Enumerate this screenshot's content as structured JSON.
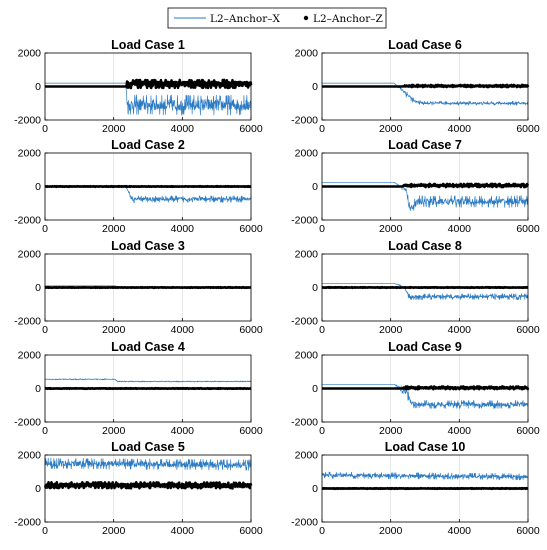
{
  "legend": {
    "placement": "top-center",
    "entries": [
      {
        "label": "L2–Anchor–X",
        "marker": "line",
        "color": "#2b7bc4"
      },
      {
        "label": "L2–Anchor–Z",
        "marker": "dot",
        "color": "#000000"
      }
    ]
  },
  "colors": {
    "series_x": "#2b7bc4",
    "series_z": "#000000",
    "grid": "#d9d9d9"
  },
  "chart_data": [
    {
      "type": "line",
      "title": "Load Case 1",
      "xlim": [
        0,
        6000
      ],
      "ylim": [
        -2000,
        2000
      ],
      "grid": true,
      "x_ticks": [
        "0",
        "2000",
        "4000",
        "6000"
      ],
      "y_ticks": [
        "2000",
        "0",
        "-2000"
      ],
      "series": [
        {
          "name": "L2–Anchor–X",
          "x": [
            0,
            2350,
            2400,
            6000
          ],
          "values": [
            200,
            200,
            -1100,
            -1100
          ],
          "noise": [
            0,
            0,
            380,
            380
          ]
        },
        {
          "name": "L2–Anchor–Z",
          "x": [
            0,
            2350,
            2400,
            6000
          ],
          "values": [
            0,
            0,
            150,
            150
          ],
          "noise": [
            0,
            0,
            150,
            150
          ]
        }
      ]
    },
    {
      "type": "line",
      "title": "Load Case 6",
      "xlim": [
        0,
        6000
      ],
      "ylim": [
        -2000,
        2000
      ],
      "grid": true,
      "x_ticks": [
        "0",
        "2000",
        "4000",
        "6000"
      ],
      "y_ticks": [
        "2000",
        "0",
        "-2000"
      ],
      "series": [
        {
          "name": "L2–Anchor–X",
          "x": [
            0,
            2100,
            2450,
            2700,
            3000,
            6000
          ],
          "values": [
            200,
            200,
            -400,
            -900,
            -1000,
            -1000
          ],
          "noise": [
            0,
            0,
            150,
            80,
            70,
            70
          ]
        },
        {
          "name": "L2–Anchor–Z",
          "x": [
            0,
            2350,
            2400,
            6000
          ],
          "values": [
            0,
            0,
            30,
            30
          ],
          "noise": [
            0,
            0,
            40,
            40
          ]
        }
      ]
    },
    {
      "type": "line",
      "title": "Load Case 2",
      "xlim": [
        0,
        6000
      ],
      "ylim": [
        -2000,
        2000
      ],
      "grid": true,
      "x_ticks": [
        "0",
        "2000",
        "4000",
        "6000"
      ],
      "y_ticks": [
        "2000",
        "0",
        "-2000"
      ],
      "series": [
        {
          "name": "L2–Anchor–X",
          "x": [
            0,
            2350,
            2550,
            2700,
            6000
          ],
          "values": [
            0,
            0,
            -800,
            -750,
            -750
          ],
          "noise": [
            0,
            0,
            120,
            120,
            120
          ]
        },
        {
          "name": "L2–Anchor–Z",
          "x": [
            0,
            6000
          ],
          "values": [
            0,
            0
          ],
          "noise": [
            10,
            10
          ]
        }
      ]
    },
    {
      "type": "line",
      "title": "Load Case 7",
      "xlim": [
        0,
        6000
      ],
      "ylim": [
        -2000,
        2000
      ],
      "grid": true,
      "x_ticks": [
        "0",
        "2000",
        "4000",
        "6000"
      ],
      "y_ticks": [
        "2000",
        "0",
        "-2000"
      ],
      "series": [
        {
          "name": "L2–Anchor–X",
          "x": [
            0,
            2100,
            2450,
            2550,
            2800,
            6000
          ],
          "values": [
            250,
            250,
            -200,
            -1300,
            -900,
            -900
          ],
          "noise": [
            0,
            0,
            150,
            200,
            220,
            220
          ]
        },
        {
          "name": "L2–Anchor–Z",
          "x": [
            0,
            2350,
            2400,
            6000
          ],
          "values": [
            0,
            0,
            60,
            60
          ],
          "noise": [
            0,
            0,
            60,
            60
          ]
        }
      ]
    },
    {
      "type": "line",
      "title": "Load Case 3",
      "xlim": [
        0,
        6000
      ],
      "ylim": [
        -2000,
        2000
      ],
      "grid": true,
      "x_ticks": [
        "0",
        "2000",
        "4000",
        "6000"
      ],
      "y_ticks": [
        "2000",
        "0",
        "-2000"
      ],
      "series": [
        {
          "name": "L2–Anchor–X",
          "x": [
            0,
            2050,
            2100,
            6000
          ],
          "values": [
            100,
            100,
            0,
            0
          ],
          "noise": [
            0,
            0,
            0,
            0
          ]
        },
        {
          "name": "L2–Anchor–Z",
          "x": [
            0,
            6000
          ],
          "values": [
            0,
            0
          ],
          "noise": [
            10,
            10
          ]
        }
      ]
    },
    {
      "type": "line",
      "title": "Load Case 8",
      "xlim": [
        0,
        6000
      ],
      "ylim": [
        -2000,
        2000
      ],
      "grid": true,
      "x_ticks": [
        "0",
        "2000",
        "4000",
        "6000"
      ],
      "y_ticks": [
        "2000",
        "0",
        "-2000"
      ],
      "series": [
        {
          "name": "L2–Anchor–X",
          "x": [
            0,
            2100,
            2400,
            2550,
            6000
          ],
          "values": [
            250,
            250,
            0,
            -550,
            -550
          ],
          "noise": [
            0,
            0,
            60,
            110,
            110
          ]
        },
        {
          "name": "L2–Anchor–Z",
          "x": [
            0,
            6000
          ],
          "values": [
            0,
            0
          ],
          "noise": [
            10,
            10
          ]
        }
      ]
    },
    {
      "type": "line",
      "title": "Load Case 4",
      "xlim": [
        0,
        6000
      ],
      "ylim": [
        -2000,
        2000
      ],
      "grid": true,
      "x_ticks": [
        "0",
        "2000",
        "4000",
        "6000"
      ],
      "y_ticks": [
        "2000",
        "0",
        "-2000"
      ],
      "series": [
        {
          "name": "L2–Anchor–X",
          "x": [
            0,
            2050,
            2100,
            6000
          ],
          "values": [
            550,
            550,
            420,
            420
          ],
          "noise": [
            20,
            20,
            20,
            20
          ]
        },
        {
          "name": "L2–Anchor–Z",
          "x": [
            0,
            6000
          ],
          "values": [
            0,
            0
          ],
          "noise": [
            10,
            10
          ]
        }
      ]
    },
    {
      "type": "line",
      "title": "Load Case 9",
      "xlim": [
        0,
        6000
      ],
      "ylim": [
        -2000,
        2000
      ],
      "grid": true,
      "x_ticks": [
        "0",
        "2000",
        "4000",
        "6000"
      ],
      "y_ticks": [
        "2000",
        "0",
        "-2000"
      ],
      "series": [
        {
          "name": "L2–Anchor–X",
          "x": [
            0,
            2100,
            2450,
            2600,
            2900,
            6000
          ],
          "values": [
            250,
            250,
            -200,
            -900,
            -950,
            -950
          ],
          "noise": [
            0,
            0,
            200,
            160,
            150,
            150
          ]
        },
        {
          "name": "L2–Anchor–Z",
          "x": [
            0,
            2350,
            2400,
            6000
          ],
          "values": [
            0,
            0,
            40,
            40
          ],
          "noise": [
            0,
            0,
            50,
            50
          ]
        }
      ]
    },
    {
      "type": "line",
      "title": "Load Case 5",
      "xlim": [
        0,
        6000
      ],
      "ylim": [
        -2000,
        2000
      ],
      "grid": true,
      "x_ticks": [
        "0",
        "2000",
        "4000",
        "6000"
      ],
      "y_ticks": [
        "2000",
        "0",
        "-2000"
      ],
      "series": [
        {
          "name": "L2–Anchor–X",
          "x": [
            0,
            6000
          ],
          "values": [
            1500,
            1400
          ],
          "noise": [
            200,
            200
          ]
        },
        {
          "name": "L2–Anchor–Z",
          "x": [
            0,
            6000
          ],
          "values": [
            200,
            180
          ],
          "noise": [
            110,
            110
          ]
        }
      ]
    },
    {
      "type": "line",
      "title": "Load Case 10",
      "xlim": [
        0,
        6000
      ],
      "ylim": [
        -2000,
        2000
      ],
      "grid": true,
      "x_ticks": [
        "0",
        "2000",
        "4000",
        "6000"
      ],
      "y_ticks": [
        "2000",
        "0",
        "-2000"
      ],
      "series": [
        {
          "name": "L2–Anchor–X",
          "x": [
            0,
            6000
          ],
          "values": [
            800,
            700
          ],
          "noise": [
            120,
            120
          ]
        },
        {
          "name": "L2–Anchor–Z",
          "x": [
            0,
            6000
          ],
          "values": [
            0,
            0
          ],
          "noise": [
            10,
            10
          ]
        }
      ]
    }
  ]
}
